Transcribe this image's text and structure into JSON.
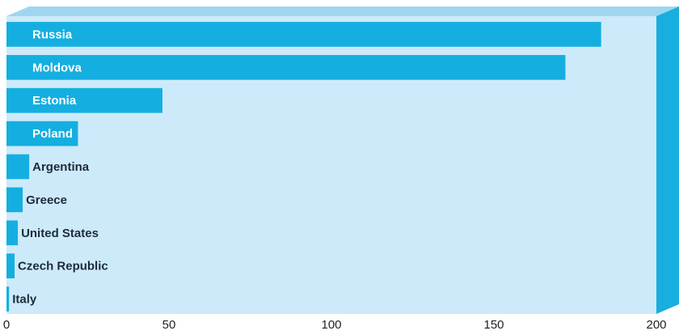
{
  "chart_data": {
    "type": "bar",
    "orientation": "horizontal",
    "title": "",
    "xlabel": "",
    "ylabel": "",
    "categories": [
      "Russia",
      "Moldova",
      "Estonia",
      "Poland",
      "Argentina",
      "Greece",
      "United States",
      "Czech Republic",
      "Italy"
    ],
    "values": [
      183,
      172,
      48,
      22,
      7,
      5,
      3.5,
      2.5,
      0.8
    ],
    "xlim": [
      0,
      200
    ],
    "xticks": [
      "0",
      "50",
      "100",
      "150",
      "200"
    ],
    "grid": false,
    "legend": "none"
  },
  "colors": {
    "bar": "#14afe0",
    "plot_face": "#cdeafa",
    "plot_top": "#9fd6ef",
    "plot_side": "#19aee0",
    "label_inside": "#ffffff",
    "label_outside": "#1d2b3a"
  }
}
